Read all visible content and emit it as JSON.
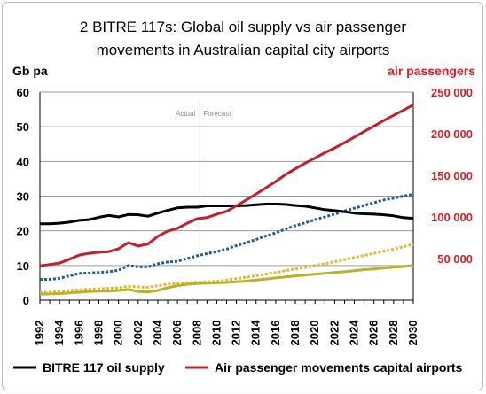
{
  "chart_data": {
    "type": "line",
    "title_lines": [
      "2 BITRE 117s: Global oil supply vs air passenger",
      "movements in Australian capital city airports"
    ],
    "left_axis_label": "Gb pa",
    "right_axis_label": "air passengers",
    "annotation_actual": "Actual",
    "annotation_forecast": "Forecast",
    "forecast_start_year": 2009,
    "x": [
      1992,
      1993,
      1994,
      1995,
      1996,
      1997,
      1998,
      1999,
      2000,
      2001,
      2002,
      2003,
      2004,
      2005,
      2006,
      2007,
      2008,
      2009,
      2010,
      2011,
      2012,
      2013,
      2014,
      2015,
      2016,
      2017,
      2018,
      2019,
      2020,
      2021,
      2022,
      2023,
      2024,
      2025,
      2026,
      2027,
      2028,
      2029,
      2030
    ],
    "x_tick_labels": [
      "1992",
      "1994",
      "1996",
      "1998",
      "2000",
      "2002",
      "2004",
      "2006",
      "2008",
      "2010",
      "2012",
      "2014",
      "2016",
      "2018",
      "2020",
      "2022",
      "2024",
      "2026",
      "2028",
      "2030"
    ],
    "y_left_ticks": [
      "0",
      "10",
      "20",
      "30",
      "40",
      "50",
      "60"
    ],
    "y_right_ticks": [
      "",
      "50 000",
      "100 000",
      "150 000",
      "200 000",
      "250 000"
    ],
    "ylim_left": [
      0,
      60
    ],
    "ylim_right": [
      0,
      250000
    ],
    "grid": "horizontal",
    "legend_position": "bottom",
    "colors": {
      "oil": "#000000",
      "air": "#c0202b",
      "blue": "#1f5c99",
      "orange": "#e6b535",
      "olive": "#b8b32a",
      "grid": "#9a9a9a",
      "left_axis_text": "#000000",
      "right_axis_text": "#d81f26"
    },
    "series": [
      {
        "name": "BITRE 117 oil supply",
        "axis": "left",
        "style": "solid",
        "color_key": "oil",
        "values": [
          22.0,
          22.0,
          22.2,
          22.5,
          23.0,
          23.2,
          23.9,
          24.4,
          24.0,
          24.7,
          24.6,
          24.2,
          25.1,
          25.9,
          26.6,
          26.8,
          26.8,
          27.2,
          27.2,
          27.2,
          27.2,
          27.3,
          27.5,
          27.7,
          27.7,
          27.6,
          27.3,
          27.1,
          26.6,
          26.1,
          25.8,
          25.5,
          25.1,
          24.9,
          24.8,
          24.6,
          24.3,
          23.8,
          23.6
        ]
      },
      {
        "name": "Air passenger movements capital airports",
        "axis": "left",
        "style": "solid",
        "color_key": "air",
        "values": [
          9.9,
          10.3,
          10.7,
          11.8,
          13.0,
          13.5,
          13.8,
          14.0,
          14.8,
          16.6,
          15.6,
          16.2,
          18.4,
          19.9,
          20.7,
          22.2,
          23.5,
          23.8,
          24.8,
          25.6,
          27.2,
          28.9,
          30.6,
          32.4,
          34.2,
          36.2,
          37.9,
          39.5,
          41.0,
          42.5,
          43.9,
          45.4,
          47.0,
          48.6,
          50.2,
          51.8,
          53.3,
          54.8,
          56.3
        ]
      },
      {
        "axis": "left",
        "style": "dotted",
        "color_key": "blue",
        "values": [
          6.0,
          6.0,
          6.3,
          7.0,
          7.7,
          7.8,
          8.0,
          8.2,
          8.6,
          10.0,
          9.6,
          9.6,
          10.5,
          11.0,
          11.2,
          12.0,
          12.8,
          13.4,
          14.0,
          14.7,
          15.7,
          16.6,
          17.5,
          18.5,
          19.4,
          20.5,
          21.5,
          22.3,
          23.2,
          24.0,
          24.8,
          25.7,
          26.5,
          27.3,
          28.1,
          28.9,
          29.4,
          30.0,
          30.5
        ]
      },
      {
        "axis": "left",
        "style": "dotted",
        "color_key": "orange",
        "values": [
          2.2,
          2.3,
          2.5,
          2.8,
          3.0,
          3.2,
          3.3,
          3.4,
          3.6,
          4.0,
          3.8,
          3.7,
          4.2,
          4.6,
          4.9,
          5.0,
          5.2,
          5.3,
          5.5,
          5.8,
          6.2,
          6.6,
          7.0,
          7.5,
          8.0,
          8.5,
          9.0,
          9.5,
          10.0,
          10.5,
          11.1,
          11.7,
          12.3,
          12.9,
          13.5,
          14.1,
          14.7,
          15.4,
          16.1
        ]
      },
      {
        "axis": "left",
        "style": "solid",
        "color_key": "olive",
        "values": [
          1.7,
          1.8,
          1.9,
          2.1,
          2.3,
          2.5,
          2.6,
          2.6,
          2.8,
          3.1,
          2.5,
          2.4,
          2.8,
          3.6,
          4.2,
          4.6,
          4.8,
          4.9,
          5.0,
          5.1,
          5.3,
          5.5,
          5.8,
          6.1,
          6.4,
          6.7,
          7.0,
          7.2,
          7.5,
          7.7,
          8.0,
          8.2,
          8.5,
          8.8,
          9.0,
          9.3,
          9.5,
          9.7,
          10.0
        ]
      }
    ]
  }
}
